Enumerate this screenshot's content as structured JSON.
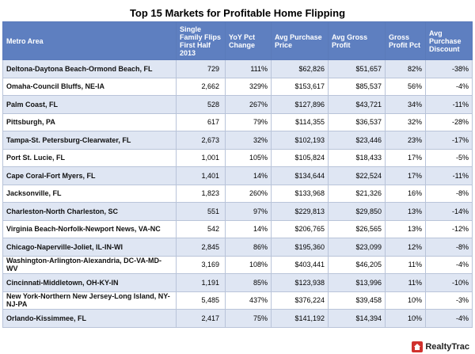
{
  "title": "Top 15 Markets for Profitable Home Flipping",
  "columns": [
    "Metro Area",
    "Single Family Flips First Half 2013",
    "YoY Pct Change",
    "Avg Purchase Price",
    "Avg Gross Profit",
    "Gross Profit Pct",
    "Avg Purchase Discount"
  ],
  "rows": [
    {
      "metro": "Deltona-Daytona Beach-Ormond Beach, FL",
      "flips": "729",
      "yoy": "111%",
      "price": "$62,826",
      "profit": "$51,657",
      "profit_pct": "82%",
      "discount": "-38%"
    },
    {
      "metro": "Omaha-Council Bluffs, NE-IA",
      "flips": "2,662",
      "yoy": "329%",
      "price": "$153,617",
      "profit": "$85,537",
      "profit_pct": "56%",
      "discount": "-4%"
    },
    {
      "metro": "Palm Coast, FL",
      "flips": "528",
      "yoy": "267%",
      "price": "$127,896",
      "profit": "$43,721",
      "profit_pct": "34%",
      "discount": "-11%"
    },
    {
      "metro": "Pittsburgh, PA",
      "flips": "617",
      "yoy": "79%",
      "price": "$114,355",
      "profit": "$36,537",
      "profit_pct": "32%",
      "discount": "-28%"
    },
    {
      "metro": "Tampa-St. Petersburg-Clearwater, FL",
      "flips": "2,673",
      "yoy": "32%",
      "price": "$102,193",
      "profit": "$23,446",
      "profit_pct": "23%",
      "discount": "-17%"
    },
    {
      "metro": "Port St. Lucie, FL",
      "flips": "1,001",
      "yoy": "105%",
      "price": "$105,824",
      "profit": "$18,433",
      "profit_pct": "17%",
      "discount": "-5%"
    },
    {
      "metro": "Cape Coral-Fort Myers, FL",
      "flips": "1,401",
      "yoy": "14%",
      "price": "$134,644",
      "profit": "$22,524",
      "profit_pct": "17%",
      "discount": "-11%"
    },
    {
      "metro": "Jacksonville, FL",
      "flips": "1,823",
      "yoy": "260%",
      "price": "$133,968",
      "profit": "$21,326",
      "profit_pct": "16%",
      "discount": "-8%"
    },
    {
      "metro": "Charleston-North Charleston, SC",
      "flips": "551",
      "yoy": "97%",
      "price": "$229,813",
      "profit": "$29,850",
      "profit_pct": "13%",
      "discount": "-14%"
    },
    {
      "metro": "Virginia Beach-Norfolk-Newport News, VA-NC",
      "flips": "542",
      "yoy": "14%",
      "price": "$206,765",
      "profit": "$26,565",
      "profit_pct": "13%",
      "discount": "-12%"
    },
    {
      "metro": "Chicago-Naperville-Joliet, IL-IN-WI",
      "flips": "2,845",
      "yoy": "86%",
      "price": "$195,360",
      "profit": "$23,099",
      "profit_pct": "12%",
      "discount": "-8%"
    },
    {
      "metro": "Washington-Arlington-Alexandria, DC-VA-MD-WV",
      "flips": "3,169",
      "yoy": "108%",
      "price": "$403,441",
      "profit": "$46,205",
      "profit_pct": "11%",
      "discount": "-4%"
    },
    {
      "metro": "Cincinnati-Middletown, OH-KY-IN",
      "flips": "1,191",
      "yoy": "85%",
      "price": "$123,938",
      "profit": "$13,996",
      "profit_pct": "11%",
      "discount": "-10%"
    },
    {
      "metro": "New York-Northern New Jersey-Long Island, NY-NJ-PA",
      "flips": "5,485",
      "yoy": "437%",
      "price": "$376,224",
      "profit": "$39,458",
      "profit_pct": "10%",
      "discount": "-3%"
    },
    {
      "metro": "Orlando-Kissimmee, FL",
      "flips": "2,417",
      "yoy": "75%",
      "price": "$141,192",
      "profit": "$14,394",
      "profit_pct": "10%",
      "discount": "-4%"
    }
  ],
  "logo": {
    "text": "RealtyTrac",
    "mark_color": "#d0312d",
    "icon": "house-icon"
  },
  "colors": {
    "header_bg": "#5e7fc0",
    "stripe_bg": "#dfe6f3"
  }
}
